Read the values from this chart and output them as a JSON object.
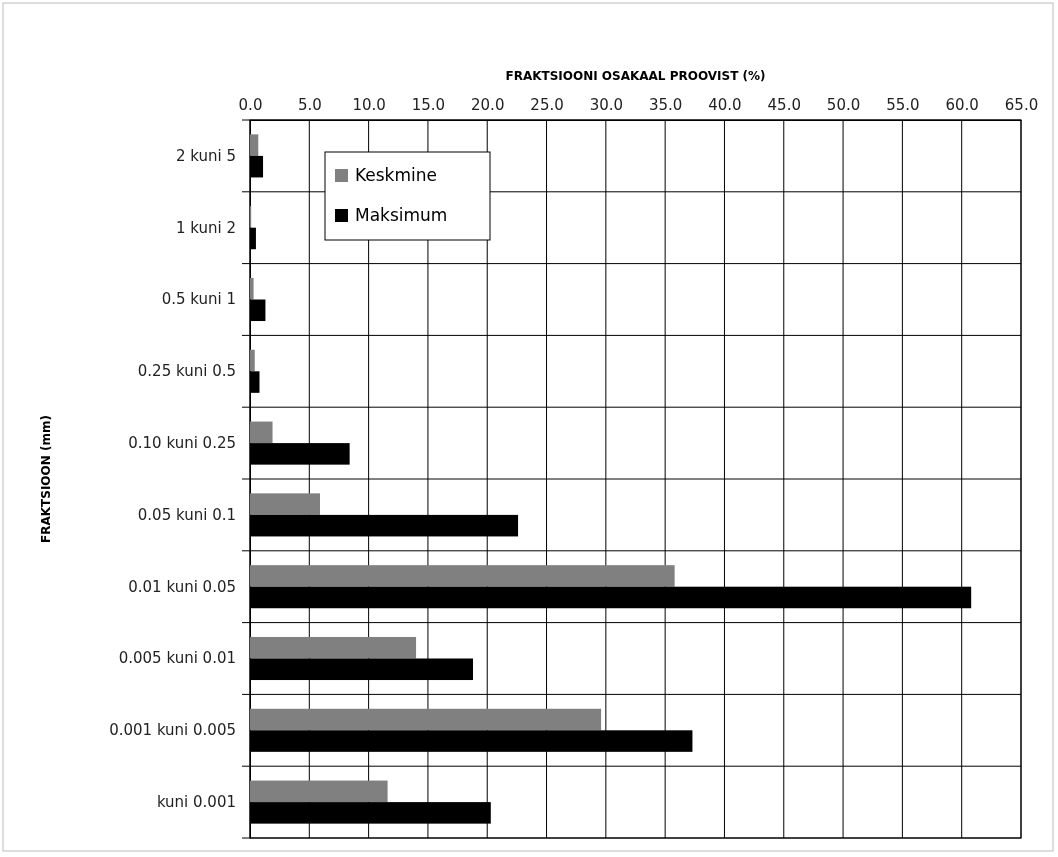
{
  "chart_data": {
    "type": "bar",
    "orientation": "horizontal",
    "title": "FRAKTSIOONI OSAKAAL PROOVIST (%)",
    "ylabel": "FRAKTSIOON (mm)",
    "categories": [
      "2 kuni 5",
      "1 kuni 2",
      "0.5 kuni 1",
      "0.25 kuni 0.5",
      "0.10 kuni 0.25",
      "0.05 kuni 0.1",
      "0.01 kuni 0.05",
      "0.005 kuni 0.01",
      "0.001 kuni 0.005",
      "kuni 0.001"
    ],
    "series": [
      {
        "name": "Keskmine",
        "color": "#808080",
        "values": [
          0.7,
          0.1,
          0.3,
          0.4,
          1.9,
          5.9,
          35.8,
          14.0,
          29.6,
          11.6
        ]
      },
      {
        "name": "Maksimum",
        "color": "#000000",
        "values": [
          1.1,
          0.5,
          1.3,
          0.8,
          8.4,
          22.6,
          60.8,
          18.8,
          37.3,
          20.3
        ]
      }
    ],
    "xlim": [
      0,
      65
    ],
    "xticks": [
      {
        "value": 0,
        "label": "0.0"
      },
      {
        "value": 5,
        "label": "5.0"
      },
      {
        "value": 10,
        "label": "10.0"
      },
      {
        "value": 15,
        "label": "15.0"
      },
      {
        "value": 20,
        "label": "20.0"
      },
      {
        "value": 25,
        "label": "25.0"
      },
      {
        "value": 30,
        "label": "30.0"
      },
      {
        "value": 35,
        "label": "35.0"
      },
      {
        "value": 40,
        "label": "40.0"
      },
      {
        "value": 45,
        "label": "45.0"
      },
      {
        "value": 50,
        "label": "50.0"
      },
      {
        "value": 55,
        "label": "55.0"
      },
      {
        "value": 60,
        "label": "60.0"
      },
      {
        "value": 65,
        "label": "65.0"
      }
    ],
    "grid": true,
    "legend": "top left"
  }
}
